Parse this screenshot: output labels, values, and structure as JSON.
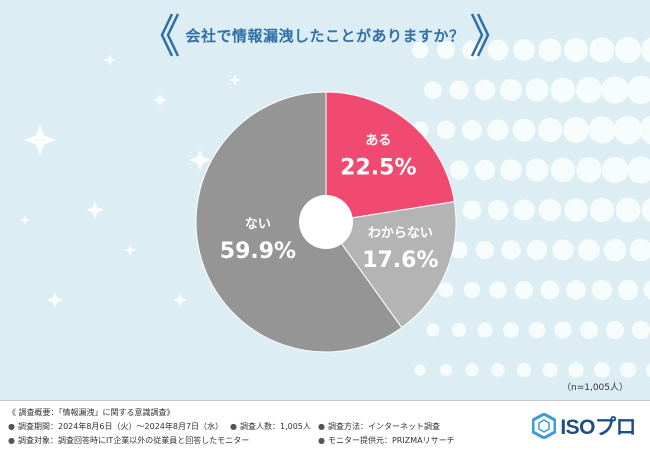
{
  "title": "会社で情報漏洩したことがありますか？",
  "sample_size": "（n=1,005人）",
  "colors": {
    "aru": "#f04a71",
    "nai": "#959595",
    "wakaranai": "#b4b4b4",
    "title": "#2f6fa8",
    "logo": "#1d4f86"
  },
  "chart_data": {
    "type": "pie",
    "title": "会社で情報漏洩したことがありますか？",
    "slices": [
      {
        "label": "ある",
        "value": 22.5,
        "display": "22.5%"
      },
      {
        "label": "わからない",
        "value": 17.6,
        "display": "17.6%"
      },
      {
        "label": "ない",
        "value": 59.9,
        "display": "59.9%"
      }
    ],
    "donut_hole": true
  },
  "footer": {
    "heading": "《 調査概要：「情報漏洩」に関する意識調査》",
    "period": "調査期間：2024年8月6日（火）〜2024年8月7日（水）",
    "respondents": "調査人数：1,005人",
    "method": "調査方法：インターネット調査",
    "target": "調査対象：調査回答時にIT企業以外の従業員と回答したモニター",
    "provider": "モニター提供元：PRIZMAリサーチ",
    "bullet": "●"
  },
  "logo": {
    "text": "ISOプロ",
    "icon": "hexagon-logo-icon"
  }
}
